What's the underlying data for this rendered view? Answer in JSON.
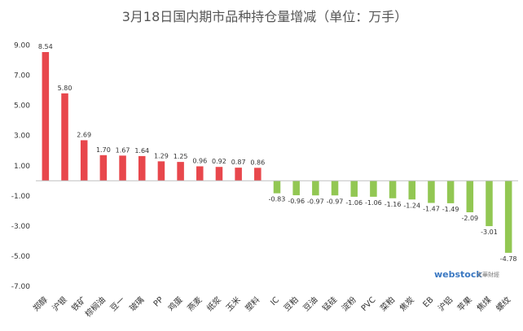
{
  "chart_data": {
    "type": "bar",
    "title": "3月18日国内期市品种持仓量增减（单位：万手）",
    "categories": [
      "郑醇",
      "沪银",
      "铁矿",
      "棕榈油",
      "豆一",
      "玻璃",
      "PP",
      "鸡蛋",
      "燕麦",
      "纸浆",
      "玉米",
      "塑料",
      "IC",
      "豆粕",
      "豆油",
      "锰硅",
      "淀粉",
      "PVC",
      "菜粕",
      "焦炭",
      "EB",
      "沪铝",
      "苹果",
      "焦煤",
      "螺纹"
    ],
    "values": [
      8.54,
      5.8,
      2.69,
      1.7,
      1.67,
      1.64,
      1.29,
      1.25,
      0.96,
      0.92,
      0.87,
      0.86,
      -0.83,
      -0.96,
      -0.97,
      -0.97,
      -1.06,
      -1.06,
      -1.16,
      -1.24,
      -1.47,
      -1.49,
      -2.09,
      -3.01,
      -4.78
    ],
    "value_labels": [
      "8.54",
      "5.80",
      "2.69",
      "1.70",
      "1.67",
      "1.64",
      "1.29",
      "1.25",
      "0.96",
      "0.92",
      "0.87",
      "0.86",
      "-0.83",
      "-0.96",
      "-0.97",
      "-0.97",
      "-1.06",
      "-1.06",
      "-1.16",
      "-1.24",
      "-1.47",
      "-1.49",
      "-2.09",
      "-3.01",
      "-4.78"
    ],
    "yticks": [
      9,
      7,
      5,
      3,
      1,
      -1,
      -3,
      -5,
      -7
    ],
    "ytick_labels": [
      "9.00",
      "7.00",
      "5.00",
      "3.00",
      "1.00",
      "-1.00",
      "-3.00",
      "-5.00",
      "-7.00"
    ],
    "ylim": [
      -7,
      9
    ],
    "grid": false,
    "colors": {
      "positive": "#e8474c",
      "negative": "#92c753"
    }
  },
  "watermark": {
    "main": "webstock",
    "sub": "文華財經"
  }
}
